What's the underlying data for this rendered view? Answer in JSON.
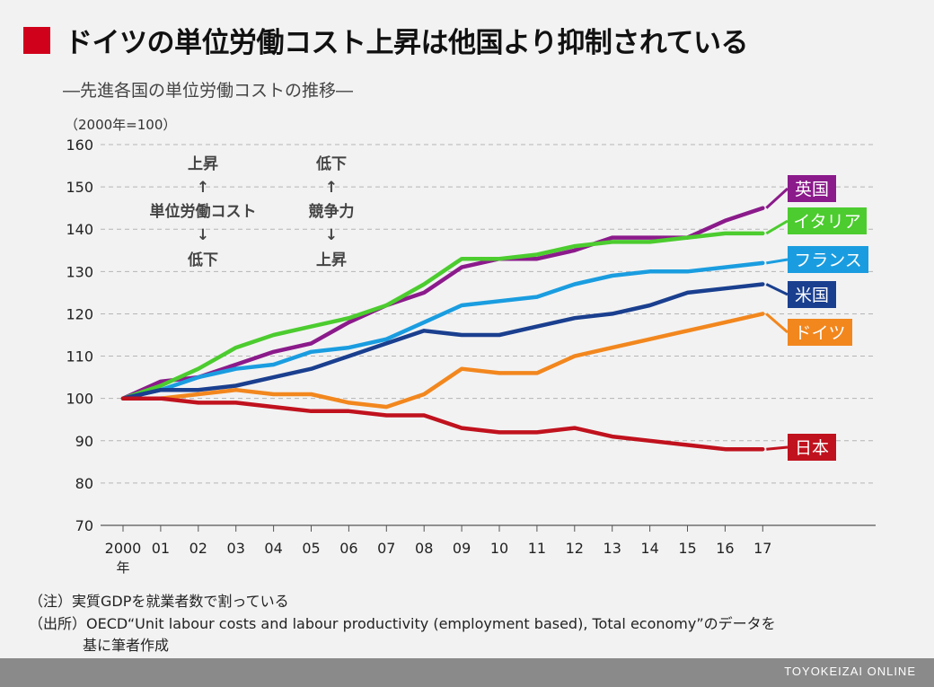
{
  "title": "ドイツの単位労働コスト上昇は他国より抑制されている",
  "subtitle": "―先進各国の単位労働コストの推移―",
  "unit_label": "（2000年=100）",
  "annotation": {
    "left": [
      "上昇",
      "↑",
      "単位労働コスト",
      "↓",
      "低下"
    ],
    "right": [
      "低下",
      "↑",
      "競争力",
      "↓",
      "上昇"
    ]
  },
  "notes": {
    "note1": "（注）実質GDPを就業者数で割っている",
    "note2": "（出所）OECD“Unit labour costs and labour productivity (employment based), Total economy”のデータを",
    "note3": "基に筆者作成"
  },
  "footer": "TOYOKEIZAI ONLINE",
  "colors": {
    "title_square": "#d0021b",
    "uk": "#8b1a8b",
    "italy": "#4ccc2f",
    "france": "#1a9de0",
    "usa": "#1a3f8f",
    "germany": "#f2871e",
    "japan": "#c0121e"
  },
  "chart_data": {
    "type": "line",
    "title": "先進各国の単位労働コストの推移",
    "ylabel": "（2000年=100）",
    "xlabel": "",
    "categories": [
      "2000",
      "01",
      "02",
      "03",
      "04",
      "05",
      "06",
      "07",
      "08",
      "09",
      "10",
      "11",
      "12",
      "13",
      "14",
      "15",
      "16",
      "17"
    ],
    "x_sublabel": "年",
    "ylim": [
      70,
      160
    ],
    "yticks": [
      70,
      80,
      90,
      100,
      110,
      120,
      130,
      140,
      150,
      160
    ],
    "grid": true,
    "series": [
      {
        "name": "英国",
        "color": "#8b1a8b",
        "values": [
          100,
          104,
          105,
          108,
          111,
          113,
          118,
          122,
          125,
          131,
          133,
          133,
          135,
          138,
          138,
          138,
          142,
          145
        ]
      },
      {
        "name": "イタリア",
        "color": "#4ccc2f",
        "values": [
          100,
          103,
          107,
          112,
          115,
          117,
          119,
          122,
          127,
          133,
          133,
          134,
          136,
          137,
          137,
          138,
          139,
          139
        ]
      },
      {
        "name": "フランス",
        "color": "#1a9de0",
        "values": [
          100,
          102,
          105,
          107,
          108,
          111,
          112,
          114,
          118,
          122,
          123,
          124,
          127,
          129,
          130,
          130,
          131,
          132
        ]
      },
      {
        "name": "米国",
        "color": "#1a3f8f",
        "values": [
          100,
          102,
          102,
          103,
          105,
          107,
          110,
          113,
          116,
          115,
          115,
          117,
          119,
          120,
          122,
          125,
          126,
          127
        ]
      },
      {
        "name": "ドイツ",
        "color": "#f2871e",
        "values": [
          100,
          100,
          101,
          102,
          101,
          101,
          99,
          98,
          101,
          107,
          106,
          106,
          110,
          112,
          114,
          116,
          118,
          120
        ]
      },
      {
        "name": "日本",
        "color": "#c0121e",
        "values": [
          100,
          100,
          99,
          99,
          98,
          97,
          97,
          96,
          96,
          93,
          92,
          92,
          93,
          91,
          90,
          89,
          88,
          88
        ]
      }
    ]
  }
}
